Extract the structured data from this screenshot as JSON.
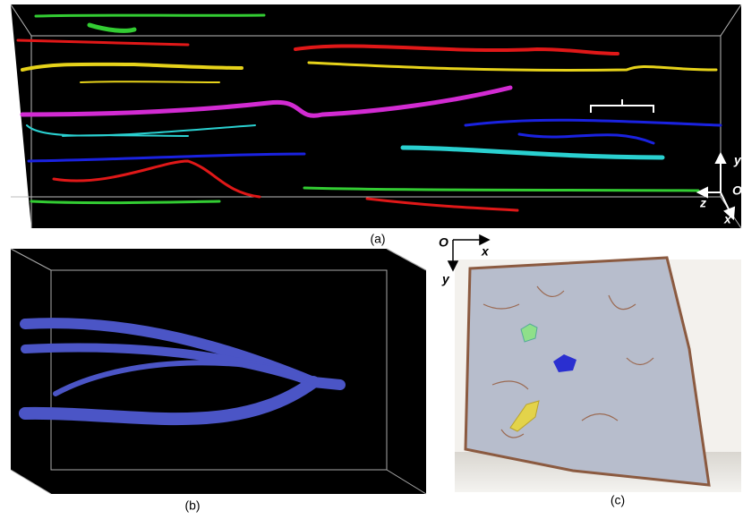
{
  "panels": [
    {
      "label": "(a)",
      "axes": [
        "y",
        "O",
        "z",
        "x"
      ]
    },
    {
      "label": "(b)"
    },
    {
      "label": "(c)",
      "axes": [
        "O",
        "x",
        "y"
      ]
    }
  ]
}
